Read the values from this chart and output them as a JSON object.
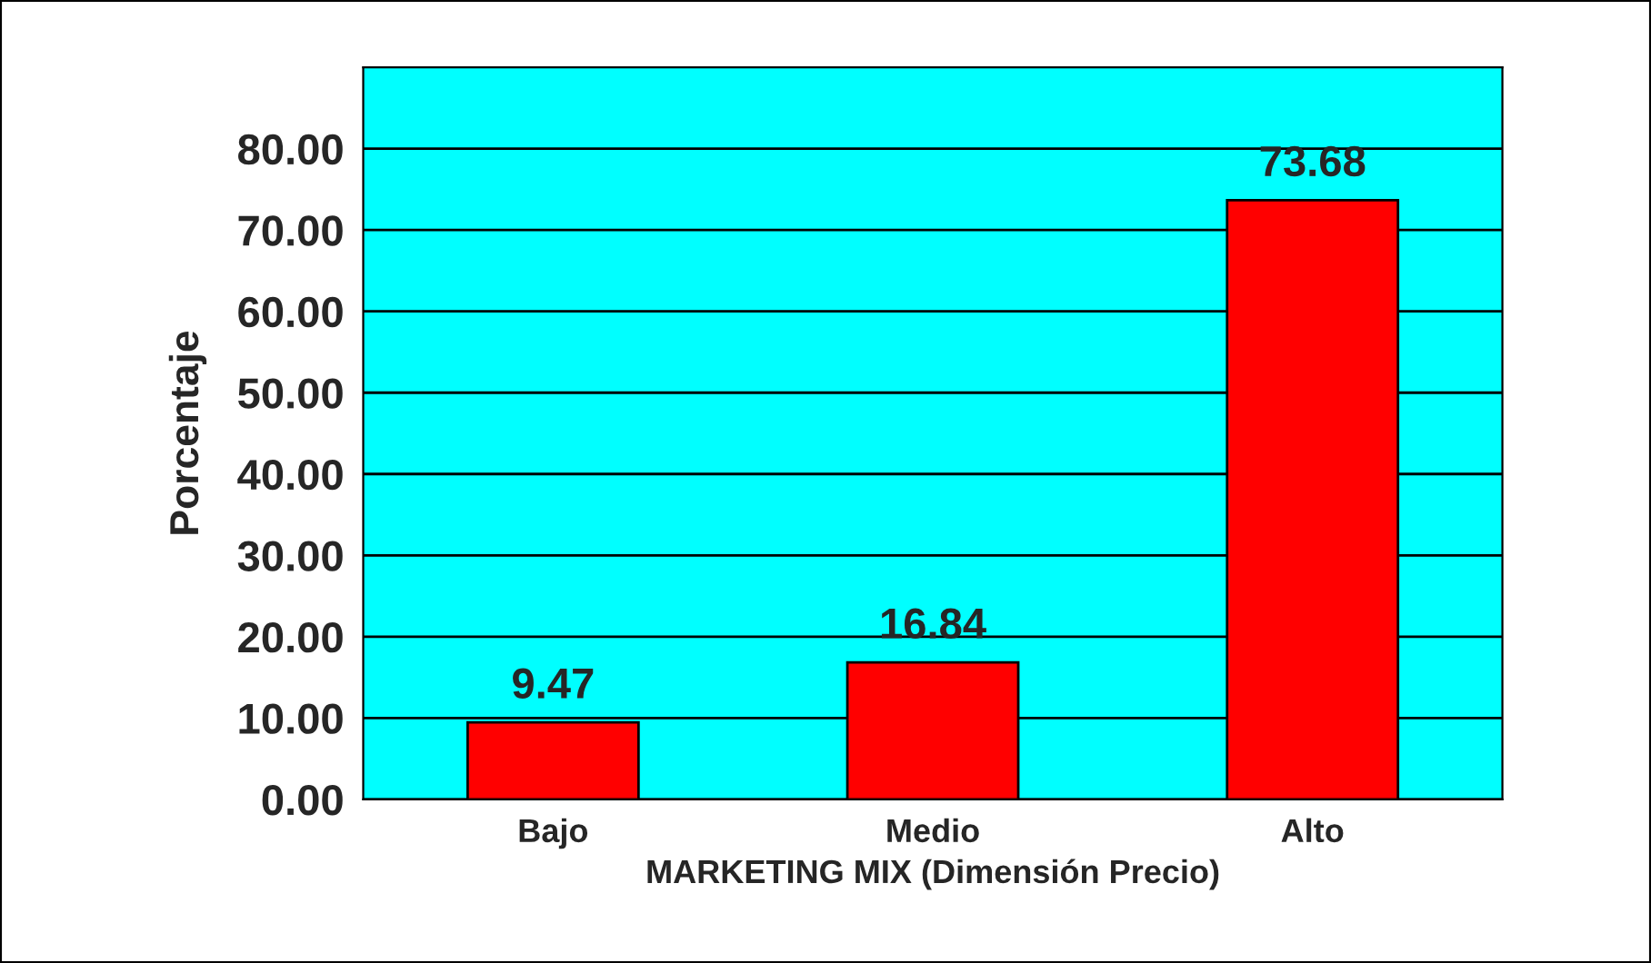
{
  "chart_data": {
    "type": "bar",
    "categories": [
      "Bajo",
      "Medio",
      "Alto"
    ],
    "values": [
      9.47,
      16.84,
      73.68
    ],
    "color": "#ff0000",
    "data_labels": true,
    "xlabel": "MARKETING MIX (Dimensión Precio)",
    "ylabel": "Porcentaje",
    "ylim": [
      0,
      90
    ],
    "yticks": [
      {
        "value": 0,
        "label": "0.00"
      },
      {
        "value": 10,
        "label": "10.00"
      },
      {
        "value": 20,
        "label": "20.00"
      },
      {
        "value": 30,
        "label": "30.00"
      },
      {
        "value": 40,
        "label": "40.00"
      },
      {
        "value": 50,
        "label": "50.00"
      },
      {
        "value": 60,
        "label": "60.00"
      },
      {
        "value": 70,
        "label": "70.00"
      },
      {
        "value": 80,
        "label": "80.00"
      }
    ],
    "grid": "y"
  }
}
